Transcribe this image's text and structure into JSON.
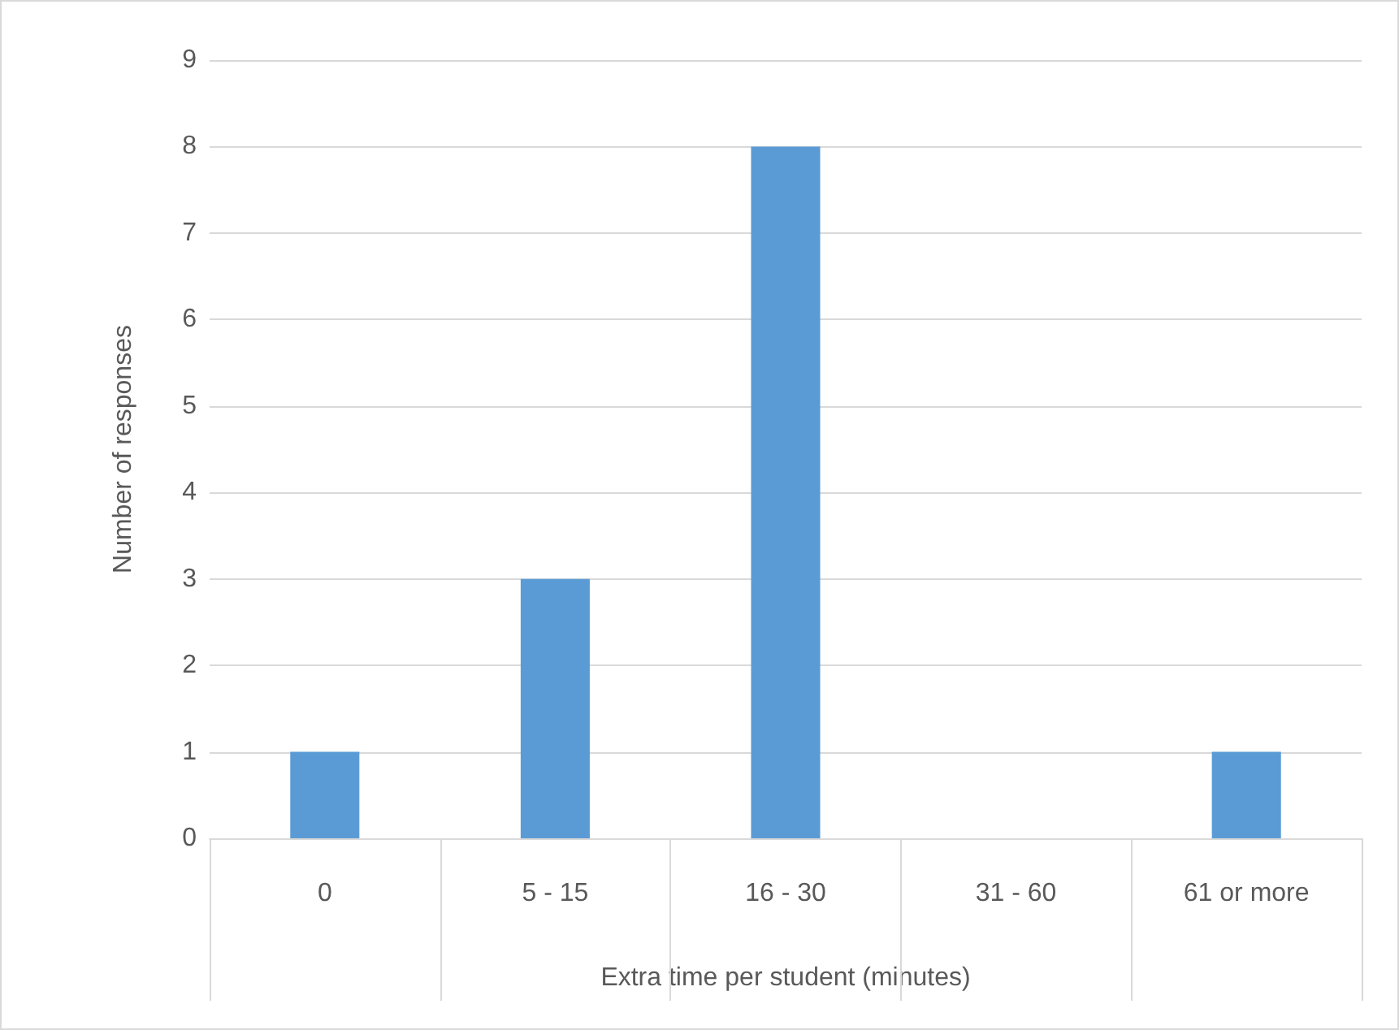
{
  "chart_data": {
    "type": "bar",
    "xlabel": "Extra time per student (minutes)",
    "ylabel": "Number of responses",
    "categories": [
      "0",
      "5 - 15",
      "16 - 30",
      "31 - 60",
      "61 or more"
    ],
    "values": [
      1,
      3,
      8,
      0,
      1
    ],
    "color": "#5b9bd5",
    "ylim": [
      0,
      9
    ],
    "yticks": [
      0,
      1,
      2,
      3,
      4,
      5,
      6,
      7,
      8,
      9
    ],
    "grid": "y"
  }
}
